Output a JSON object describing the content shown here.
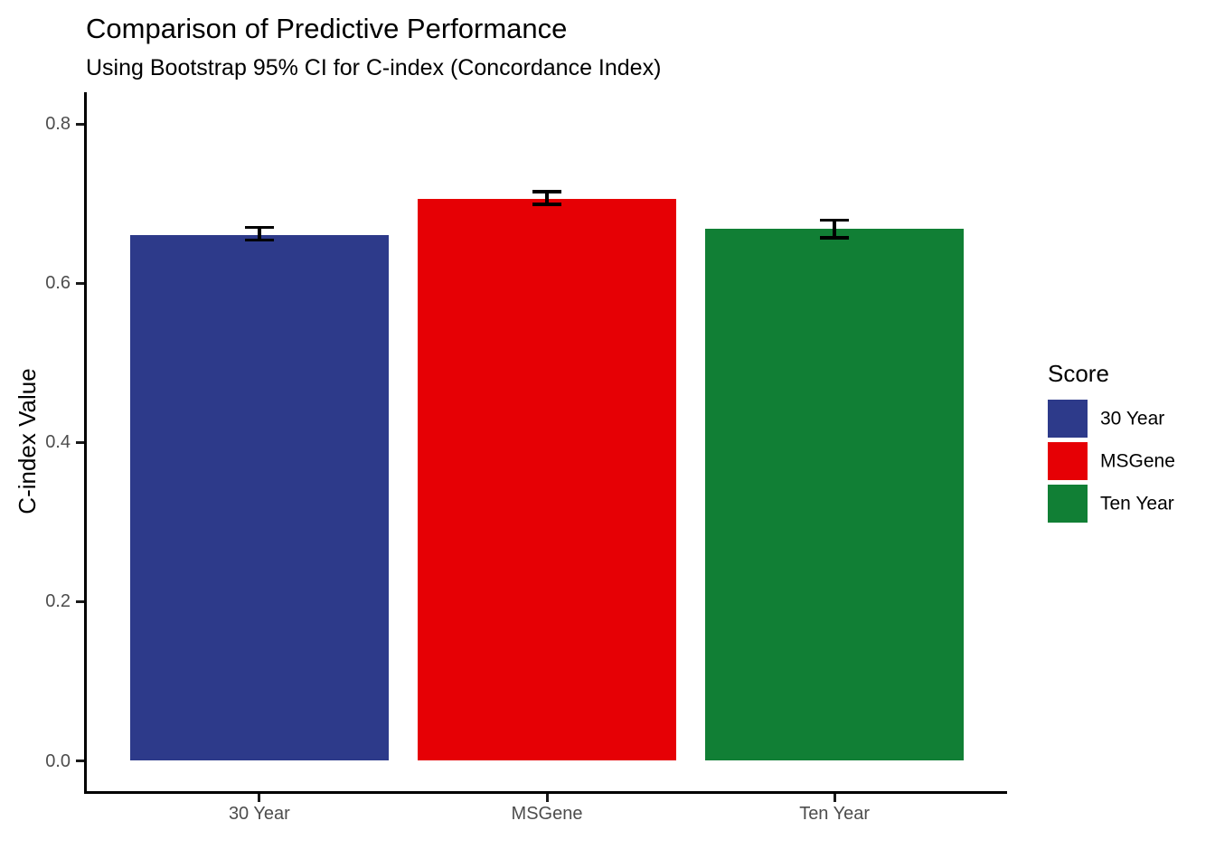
{
  "chart_data": {
    "type": "bar",
    "title": "Comparison of Predictive Performance",
    "subtitle": "Using Bootstrap 95% CI for C-index (Concordance Index)",
    "xlabel": "",
    "ylabel": "C-index Value",
    "categories": [
      "30 Year",
      "MSGene",
      "Ten Year"
    ],
    "values": [
      0.66,
      0.706,
      0.668
    ],
    "ci_low": [
      0.654,
      0.699,
      0.657
    ],
    "ci_high": [
      0.67,
      0.715,
      0.679
    ],
    "bar_colors": [
      "#2D3A8A",
      "#E60005",
      "#117F35"
    ],
    "yticks": [
      {
        "value": 0.0,
        "label": "0.0"
      },
      {
        "value": 0.2,
        "label": "0.2"
      },
      {
        "value": 0.4,
        "label": "0.4"
      },
      {
        "value": 0.6,
        "label": "0.6"
      },
      {
        "value": 0.8,
        "label": "0.8"
      }
    ],
    "ylim": [
      -0.042,
      0.84
    ],
    "grid": false,
    "error_bar_color": "#000000",
    "axis_color": "#000000",
    "legend": {
      "title": "Score",
      "position": "right",
      "entries": [
        {
          "label": "30 Year",
          "color": "#2D3A8A"
        },
        {
          "label": "MSGene",
          "color": "#E60005"
        },
        {
          "label": "Ten Year",
          "color": "#117F35"
        }
      ]
    }
  }
}
